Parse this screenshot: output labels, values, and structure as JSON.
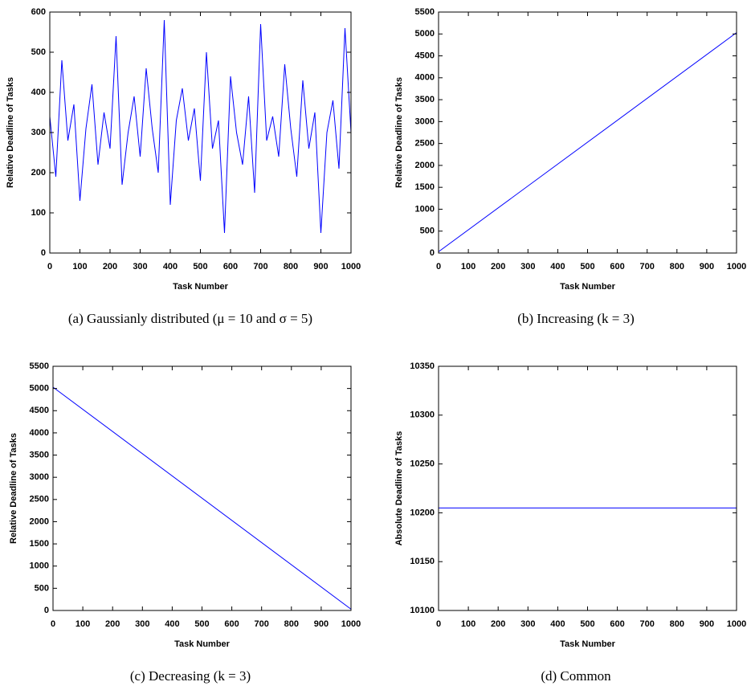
{
  "chart_data": [
    {
      "type": "line",
      "caption": "(a)  Gaussianly distributed (μ = 10 and σ = 5)",
      "xlabel": "Task Number",
      "ylabel": "Relative Deadline of Tasks",
      "color": "#0000ff",
      "x": [
        0,
        20,
        40,
        60,
        80,
        100,
        120,
        140,
        160,
        180,
        200,
        220,
        240,
        260,
        280,
        300,
        320,
        340,
        360,
        380,
        400,
        420,
        440,
        460,
        480,
        500,
        520,
        540,
        560,
        580,
        600,
        620,
        640,
        660,
        680,
        700,
        720,
        740,
        760,
        780,
        800,
        820,
        840,
        860,
        880,
        900,
        920,
        940,
        960,
        980,
        1000
      ],
      "values": [
        340,
        190,
        480,
        280,
        370,
        130,
        310,
        420,
        220,
        350,
        260,
        540,
        170,
        300,
        390,
        240,
        460,
        310,
        200,
        580,
        120,
        330,
        410,
        280,
        360,
        180,
        500,
        260,
        330,
        50,
        440,
        300,
        220,
        390,
        150,
        570,
        280,
        340,
        240,
        470,
        310,
        190,
        430,
        260,
        350,
        50,
        300,
        380,
        210,
        560,
        300
      ],
      "xlim": [
        0,
        1000
      ],
      "xticks": [
        0,
        100,
        200,
        300,
        400,
        500,
        600,
        700,
        800,
        900,
        1000
      ],
      "ylim": [
        0,
        600
      ],
      "yticks": [
        0,
        100,
        200,
        300,
        400,
        500,
        600
      ]
    },
    {
      "type": "line",
      "caption": "(b)  Increasing (k = 3)",
      "xlabel": "Task Number",
      "ylabel": "Relative Deadline of Tasks",
      "color": "#0000ff",
      "x": [
        0,
        1000
      ],
      "values": [
        30,
        5030
      ],
      "xlim": [
        0,
        1000
      ],
      "xticks": [
        0,
        100,
        200,
        300,
        400,
        500,
        600,
        700,
        800,
        900,
        1000
      ],
      "ylim": [
        0,
        5500
      ],
      "yticks": [
        0,
        500,
        1000,
        1500,
        2000,
        2500,
        3000,
        3500,
        4000,
        4500,
        5000,
        5500
      ]
    },
    {
      "type": "line",
      "caption": "(c)  Decreasing (k = 3)",
      "xlabel": "Task Number",
      "ylabel": "Relative Deadline of Tasks",
      "color": "#0000ff",
      "x": [
        0,
        1000
      ],
      "values": [
        5030,
        30
      ],
      "xlim": [
        0,
        1000
      ],
      "xticks": [
        0,
        100,
        200,
        300,
        400,
        500,
        600,
        700,
        800,
        900,
        1000
      ],
      "ylim": [
        0,
        5500
      ],
      "yticks": [
        0,
        500,
        1000,
        1500,
        2000,
        2500,
        3000,
        3500,
        4000,
        4500,
        5000,
        5500
      ]
    },
    {
      "type": "line",
      "caption": "(d)  Common",
      "xlabel": "Task Number",
      "ylabel": "Absolute Deadline of Tasks",
      "color": "#0000ff",
      "x": [
        0,
        1000
      ],
      "values": [
        10205,
        10205
      ],
      "xlim": [
        0,
        1000
      ],
      "xticks": [
        0,
        100,
        200,
        300,
        400,
        500,
        600,
        700,
        800,
        900,
        1000
      ],
      "ylim": [
        10100,
        10350
      ],
      "yticks": [
        10100,
        10150,
        10200,
        10250,
        10300,
        10350
      ]
    }
  ]
}
